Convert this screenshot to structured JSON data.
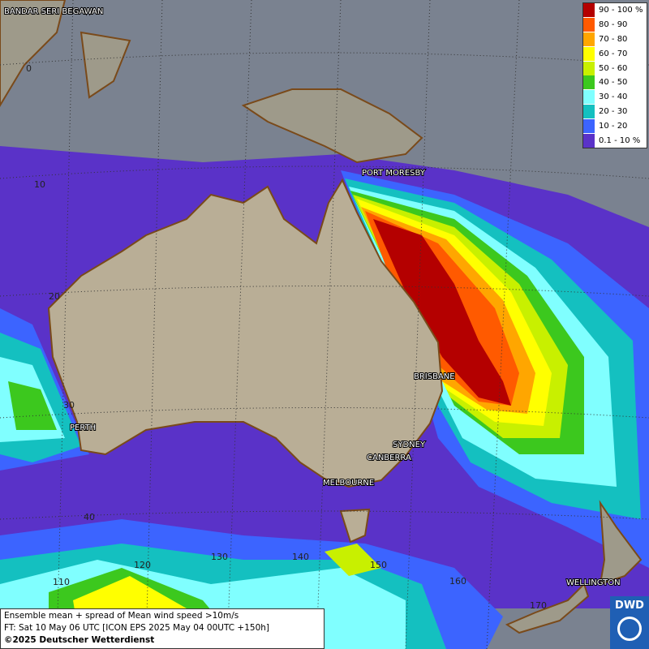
{
  "legend": {
    "entries": [
      {
        "label": "90 - 100 %",
        "color": "#b40000"
      },
      {
        "label": "80 - 90",
        "color": "#ff5a00"
      },
      {
        "label": "70 - 80",
        "color": "#ffa600"
      },
      {
        "label": "60 - 70",
        "color": "#ffff00"
      },
      {
        "label": "50 - 60",
        "color": "#c8f000"
      },
      {
        "label": "40 - 50",
        "color": "#3cc81e"
      },
      {
        "label": "30 - 40",
        "color": "#80ffff"
      },
      {
        "label": "20 - 30",
        "color": "#14c0c0"
      },
      {
        "label": "10 - 20",
        "color": "#3c64ff"
      },
      {
        "label": "0.1 - 10 %",
        "color": "#5a32c8"
      }
    ]
  },
  "cities": [
    "BANDAR SERI BEGAWAN",
    "PORT MORESBY",
    "BRISBANE",
    "PERTH",
    "SYDNEY",
    "CANBERRA",
    "MELBOURNE",
    "WELLINGTON"
  ],
  "latitude_labels": [
    "0",
    "10",
    "20",
    "30",
    "40"
  ],
  "longitude_labels": [
    "110",
    "120",
    "130",
    "140",
    "150",
    "160",
    "170"
  ],
  "caption": {
    "lines": [
      "Ensemble mean + spread of Mean wind speed >10m/s",
      "FT: Sat 10 May 06 UTC [ICON EPS 2025 May 04 00UTC +150h]"
    ],
    "copyright": "©2025 Deutscher Wetterdienst"
  },
  "logo": "DWD"
}
